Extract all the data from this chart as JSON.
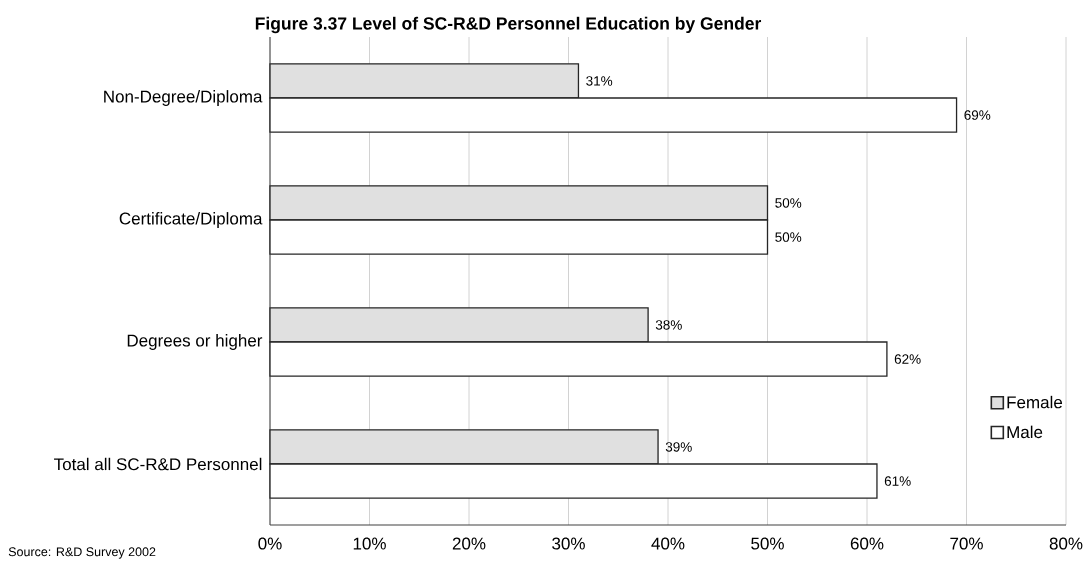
{
  "chart_data": {
    "type": "bar",
    "orientation": "horizontal",
    "title": "Figure 3.37 Level of SC-R&D Personnel Education by Gender",
    "categories": [
      "Non-Degree/Diploma",
      "Certificate/Diploma",
      "Degrees or higher",
      "Total all SC-R&D Personnel"
    ],
    "series": [
      {
        "name": "Female",
        "color": "#e0e0e0",
        "values": [
          31,
          50,
          38,
          39
        ],
        "value_labels": [
          "31%",
          "50%",
          "38%",
          "39%"
        ]
      },
      {
        "name": "Male",
        "color": "#ffffff",
        "values": [
          69,
          50,
          62,
          61
        ],
        "value_labels": [
          "69%",
          "50%",
          "62%",
          "61%"
        ]
      }
    ],
    "xlim": [
      0,
      80
    ],
    "xticks": [
      {
        "value": 0,
        "label": "0%"
      },
      {
        "value": 10,
        "label": "10%"
      },
      {
        "value": 20,
        "label": "20%"
      },
      {
        "value": 30,
        "label": "30%"
      },
      {
        "value": 40,
        "label": "40%"
      },
      {
        "value": 50,
        "label": "50%"
      },
      {
        "value": 60,
        "label": "60%"
      },
      {
        "value": 70,
        "label": "70%"
      },
      {
        "value": 80,
        "label": "80%"
      }
    ],
    "grid": "x",
    "legend": "right",
    "annotations": [
      "Source: R&D Survey 2002"
    ]
  }
}
